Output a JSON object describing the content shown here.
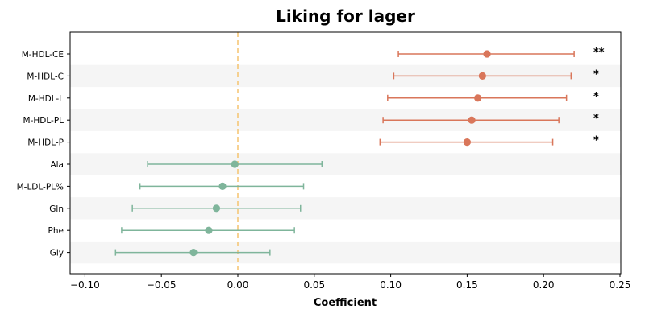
{
  "chart_data": {
    "type": "forest",
    "title": "Liking for lager",
    "xlabel": "Coefficient",
    "xlim": [
      -0.11,
      0.25
    ],
    "xticks": [
      -0.1,
      -0.05,
      0.0,
      0.05,
      0.1,
      0.15,
      0.2,
      0.25
    ],
    "xtick_labels": [
      "−0.10",
      "−0.05",
      "0.00",
      "0.05",
      "0.10",
      "0.15",
      "0.20",
      "0.25"
    ],
    "reference_line": 0.0,
    "rows": [
      {
        "label": "M-HDL-CE",
        "estimate": 0.163,
        "ci_low": 0.105,
        "ci_high": 0.22,
        "significance": "**",
        "group": "positive"
      },
      {
        "label": "M-HDL-C",
        "estimate": 0.16,
        "ci_low": 0.102,
        "ci_high": 0.218,
        "significance": "*",
        "group": "positive"
      },
      {
        "label": "M-HDL-L",
        "estimate": 0.157,
        "ci_low": 0.098,
        "ci_high": 0.215,
        "significance": "*",
        "group": "positive"
      },
      {
        "label": "M-HDL-PL",
        "estimate": 0.153,
        "ci_low": 0.095,
        "ci_high": 0.21,
        "significance": "*",
        "group": "positive"
      },
      {
        "label": "M-HDL-P",
        "estimate": 0.15,
        "ci_low": 0.093,
        "ci_high": 0.206,
        "significance": "*",
        "group": "positive"
      },
      {
        "label": "Ala",
        "estimate": -0.002,
        "ci_low": -0.059,
        "ci_high": 0.055,
        "significance": "",
        "group": "neutral"
      },
      {
        "label": "M-LDL-PL%",
        "estimate": -0.01,
        "ci_low": -0.064,
        "ci_high": 0.043,
        "significance": "",
        "group": "neutral"
      },
      {
        "label": "Gln",
        "estimate": -0.014,
        "ci_low": -0.069,
        "ci_high": 0.041,
        "significance": "",
        "group": "neutral"
      },
      {
        "label": "Phe",
        "estimate": -0.019,
        "ci_low": -0.076,
        "ci_high": 0.037,
        "significance": "",
        "group": "neutral"
      },
      {
        "label": "Gly",
        "estimate": -0.029,
        "ci_low": -0.08,
        "ci_high": 0.021,
        "significance": "",
        "group": "neutral"
      }
    ],
    "colors": {
      "positive": "#d9765a",
      "neutral": "#7fb59b",
      "reference": "#f5c36e",
      "band": "#f5f5f5"
    },
    "grid": false,
    "alternating_row_bands": true
  }
}
